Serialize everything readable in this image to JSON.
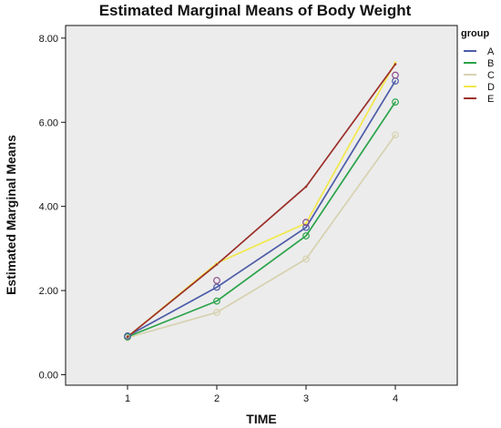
{
  "chart_data": {
    "type": "line",
    "title": "Estimated Marginal Means of Body Weight",
    "xlabel": "TIME",
    "ylabel": "Estimated Marginal Means",
    "categories": [
      "1",
      "2",
      "3",
      "4"
    ],
    "ylim": [
      -0.25,
      8.3
    ],
    "yticks": [
      0,
      2,
      4,
      6,
      8
    ],
    "ytick_labels": [
      "0.00",
      "2.00",
      "4.00",
      "6.00",
      "8.00"
    ],
    "grid": false,
    "plot_background": "#ececec",
    "legend": {
      "title": "group",
      "position": "right"
    },
    "series": [
      {
        "name": "A",
        "color": "#4c5ca8",
        "marker": "circle",
        "values": [
          0.92,
          2.08,
          3.5,
          6.98
        ]
      },
      {
        "name": "B",
        "color": "#2aa34a",
        "marker": "circle",
        "values": [
          0.9,
          1.75,
          3.3,
          6.48
        ]
      },
      {
        "name": "C",
        "color": "#d6d2b0",
        "marker": "circle",
        "values": [
          0.88,
          1.48,
          2.75,
          5.7
        ]
      },
      {
        "name": "D",
        "color": "#f2e84a",
        "marker": "none",
        "values": [
          0.9,
          2.65,
          3.6,
          7.42
        ]
      },
      {
        "name": "E",
        "color": "#9b2f2a",
        "marker": "none",
        "values": [
          0.9,
          2.62,
          4.47,
          7.38
        ]
      }
    ],
    "extra_markers": [
      {
        "series": "E",
        "x_index": 1,
        "value": 2.24,
        "color": "#8a4a8a"
      },
      {
        "series": "E",
        "x_index": 2,
        "value": 3.62,
        "color": "#8a4a8a"
      },
      {
        "series": "E",
        "x_index": 3,
        "value": 7.12,
        "color": "#8a4a8a"
      }
    ]
  }
}
